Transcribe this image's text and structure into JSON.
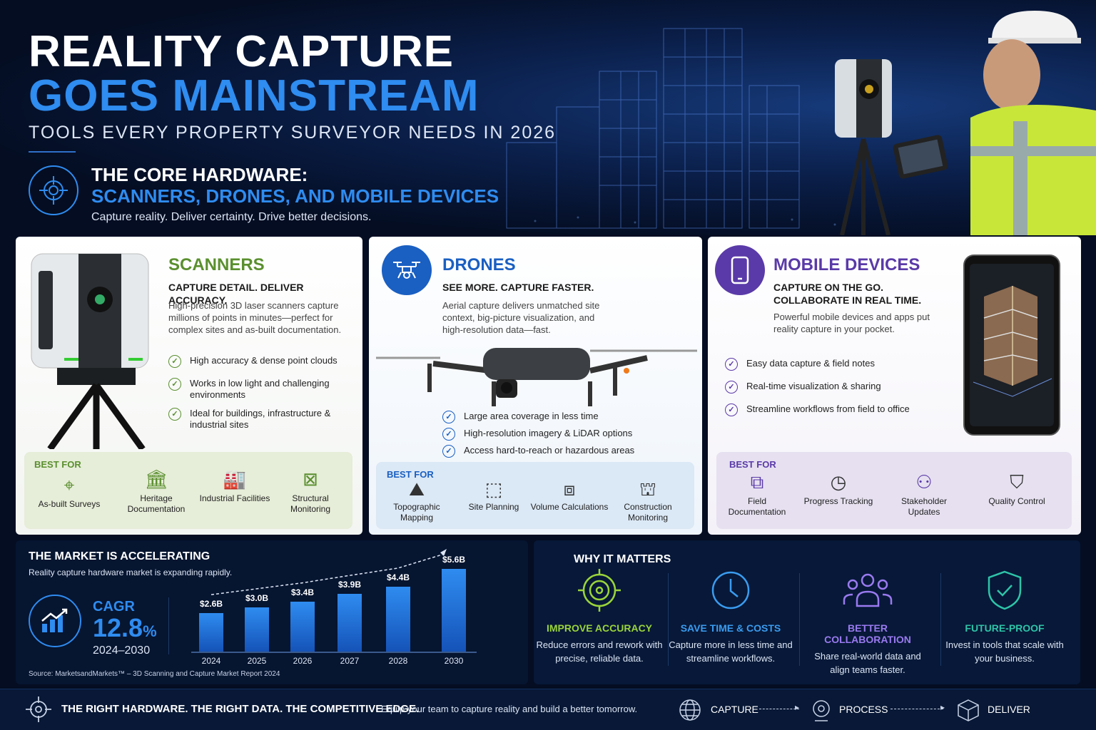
{
  "header": {
    "title_line1": "REALITY CAPTURE",
    "title_line2": "GOES MAINSTREAM",
    "subtitle": "TOOLS EVERY PROPERTY SURVEYOR NEEDS IN 2026",
    "core_title1": "THE CORE HARDWARE:",
    "core_title2": "SCANNERS, DRONES, AND MOBILE DEVICES",
    "core_tagline": "Capture reality. Deliver certainty. Drive better decisions."
  },
  "cards": {
    "scanners": {
      "title": "SCANNERS",
      "color": "#5a8f2e",
      "tagline": "CAPTURE DETAIL. DELIVER ACCURACY.",
      "description": "High-precision 3D laser scanners capture millions of points in minutes—perfect for complex sites and as-built documentation.",
      "checks": [
        "High accuracy & dense point clouds",
        "Works in low light and challenging environments",
        "Ideal for buildings, infrastructure & industrial sites"
      ],
      "best_label": "BEST FOR",
      "best_for": [
        "As-built Surveys",
        "Heritage Documentation",
        "Industrial Facilities",
        "Structural Monitoring"
      ]
    },
    "drones": {
      "title": "DRONES",
      "color": "#1a5fc2",
      "tagline": "SEE MORE. CAPTURE FASTER.",
      "description": "Aerial capture delivers unmatched site context, big-picture visualization, and high-resolution data—fast.",
      "checks": [
        "Large area coverage in less time",
        "High-resolution imagery & LiDAR options",
        "Access hard-to-reach or hazardous areas"
      ],
      "best_label": "BEST FOR",
      "best_for": [
        "Topographic Mapping",
        "Site Planning",
        "Volume Calculations",
        "Construction Monitoring"
      ]
    },
    "mobile": {
      "title": "MOBILE DEVICES",
      "color": "#5a3aa8",
      "tagline": "CAPTURE ON THE GO. COLLABORATE IN REAL TIME.",
      "description": "Powerful mobile devices and apps put reality capture in your pocket.",
      "checks": [
        "Easy data capture & field notes",
        "Real-time visualization & sharing",
        "Streamline workflows from field to office"
      ],
      "best_label": "BEST FOR",
      "best_for": [
        "Field Documentation",
        "Progress Tracking",
        "Stakeholder Updates",
        "Quality Control"
      ]
    }
  },
  "market": {
    "title": "THE MARKET IS ACCELERATING",
    "subtitle": "Reality capture hardware market is expanding rapidly.",
    "cagr_label": "CAGR",
    "cagr_value": "12.8",
    "cagr_unit": "%",
    "cagr_range": "2024–2030",
    "source": "Source: MarketsandMarkets™ – 3D Scanning and Capture Market Report 2024"
  },
  "chart_data": {
    "type": "bar",
    "categories": [
      "2024",
      "2025",
      "2026",
      "2027",
      "2028",
      "2030"
    ],
    "values": [
      2.6,
      3.0,
      3.4,
      3.9,
      4.4,
      5.6
    ],
    "value_labels": [
      "$2.6B",
      "$3.0B",
      "$3.4B",
      "$3.9B",
      "$4.4B",
      "$5.6B"
    ],
    "ylim": [
      0,
      5.6
    ],
    "title": "",
    "xlabel": "",
    "ylabel": ""
  },
  "why": {
    "title": "WHY IT MATTERS",
    "items": [
      {
        "title": "IMPROVE ACCURACY",
        "desc": "Reduce errors and rework with precise, reliable data.",
        "color": "#9ad43a",
        "icon": "target-icon"
      },
      {
        "title": "SAVE TIME & COSTS",
        "desc": "Capture more in less time and streamline workflows.",
        "color": "#3a9cf0",
        "icon": "clock-icon"
      },
      {
        "title": "BETTER COLLABORATION",
        "desc": "Share real-world data and align teams faster.",
        "color": "#9a7af0",
        "icon": "team-icon"
      },
      {
        "title": "FUTURE-PROOF",
        "desc": "Invest in tools that scale with your business.",
        "color": "#2ec4a8",
        "icon": "shield-icon"
      }
    ]
  },
  "footer": {
    "headline": "THE RIGHT HARDWARE. THE RIGHT DATA. THE COMPETITIVE EDGE.",
    "tagline": "Equip your team to capture reality and build a better tomorrow.",
    "steps": [
      "CAPTURE",
      "PROCESS",
      "DELIVER"
    ]
  }
}
